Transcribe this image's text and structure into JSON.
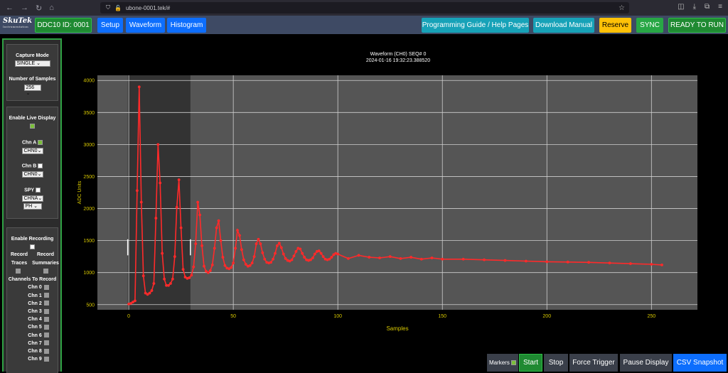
{
  "browser": {
    "url": "ubone-0001.tek/#"
  },
  "logo": {
    "name": "SkuTek",
    "tagline": "Instrumentation"
  },
  "header": {
    "device_label": "DDC10 ID: 0001",
    "nav": [
      "Setup",
      "Waveform",
      "Histogram"
    ],
    "programming_guide": "Programming Guide / Help Pages",
    "download_manual": "Download Manual",
    "reserve": "Reserve",
    "sync": "SYNC",
    "status": "READY TO RUN"
  },
  "sidebar": {
    "capture_mode_label": "Capture Mode",
    "capture_mode_value": "SINGLE",
    "num_samples_label": "Number of Samples",
    "num_samples_value": "256",
    "live_display_label": "Enable Live Display",
    "chn_a_label": "Chn A",
    "chn_a_value": "CHN0",
    "chn_b_label": "Chn B",
    "chn_b_value": "CHN0",
    "spy_label": "SPY",
    "spy_value1": "CHNA",
    "spy_value2": "PH",
    "recording_label": "Enable Recording",
    "record_traces_label": "Record Traces",
    "record_summaries_label": "Record Summaries",
    "channels_to_record_label": "Channels To Record",
    "channels": [
      "Chn 0",
      "Chn 1",
      "Chn 2",
      "Chn 3",
      "Chn 4",
      "Chn 5",
      "Chn 6",
      "Chn 7",
      "Chn 8",
      "Chn 9"
    ]
  },
  "chart_title": {
    "line1": "Waveform (CH0) SEQ# 0",
    "line2": "2024-01-16 19:32:23.388520"
  },
  "chart_data": {
    "type": "line",
    "title": "Waveform (CH0) SEQ# 0",
    "subtitle": "2024-01-16 19:32:23.388520",
    "xlabel": "Samples",
    "ylabel": "ADC Units",
    "xlim": [
      -15,
      272
    ],
    "ylim": [
      420,
      4080
    ],
    "xticks": [
      0,
      50,
      100,
      150,
      200,
      250
    ],
    "yticks": [
      500,
      1000,
      1500,
      2000,
      2500,
      3000,
      3500,
      4000
    ],
    "grid": true,
    "highlight_region": [
      -0.5,
      29.5
    ],
    "marker_positions": [
      -0.5,
      29.5
    ],
    "colors": {
      "line": "#ff2a2a",
      "plot_bg": "#555555",
      "highlight_bg": "#333333",
      "axis_text": "#d8c800"
    },
    "series": [
      {
        "values": [
          [
            0,
            510
          ],
          [
            1,
            520
          ],
          [
            2,
            540
          ],
          [
            3,
            560
          ],
          [
            4,
            2280
          ],
          [
            5,
            3900
          ],
          [
            6,
            2100
          ],
          [
            7,
            950
          ],
          [
            8,
            680
          ],
          [
            9,
            660
          ],
          [
            10,
            680
          ],
          [
            11,
            720
          ],
          [
            12,
            830
          ],
          [
            13,
            1850
          ],
          [
            14,
            3000
          ],
          [
            15,
            2400
          ],
          [
            16,
            1300
          ],
          [
            17,
            900
          ],
          [
            18,
            800
          ],
          [
            19,
            800
          ],
          [
            20,
            830
          ],
          [
            21,
            900
          ],
          [
            22,
            1250
          ],
          [
            23,
            2020
          ],
          [
            24,
            2450
          ],
          [
            25,
            1700
          ],
          [
            26,
            1050
          ],
          [
            27,
            930
          ],
          [
            28,
            910
          ],
          [
            29,
            920
          ],
          [
            30,
            960
          ],
          [
            31,
            1090
          ],
          [
            32,
            1450
          ],
          [
            33,
            2100
          ],
          [
            34,
            1900
          ],
          [
            35,
            1420
          ],
          [
            36,
            1100
          ],
          [
            37,
            1020
          ],
          [
            38,
            1000
          ],
          [
            39,
            1030
          ],
          [
            40,
            1120
          ],
          [
            41,
            1380
          ],
          [
            42,
            1700
          ],
          [
            43,
            1810
          ],
          [
            44,
            1500
          ],
          [
            45,
            1240
          ],
          [
            46,
            1110
          ],
          [
            47,
            1070
          ],
          [
            48,
            1060
          ],
          [
            49,
            1080
          ],
          [
            50,
            1150
          ],
          [
            51,
            1380
          ],
          [
            52,
            1660
          ],
          [
            53,
            1580
          ],
          [
            54,
            1360
          ],
          [
            55,
            1200
          ],
          [
            56,
            1130
          ],
          [
            57,
            1100
          ],
          [
            58,
            1110
          ],
          [
            59,
            1150
          ],
          [
            60,
            1250
          ],
          [
            61,
            1450
          ],
          [
            62,
            1520
          ],
          [
            63,
            1450
          ],
          [
            64,
            1310
          ],
          [
            65,
            1210
          ],
          [
            66,
            1160
          ],
          [
            67,
            1150
          ],
          [
            68,
            1160
          ],
          [
            69,
            1210
          ],
          [
            70,
            1300
          ],
          [
            71,
            1420
          ],
          [
            72,
            1460
          ],
          [
            73,
            1390
          ],
          [
            74,
            1290
          ],
          [
            75,
            1220
          ],
          [
            76,
            1190
          ],
          [
            77,
            1180
          ],
          [
            78,
            1200
          ],
          [
            79,
            1260
          ],
          [
            80,
            1330
          ],
          [
            81,
            1380
          ],
          [
            82,
            1370
          ],
          [
            83,
            1300
          ],
          [
            84,
            1240
          ],
          [
            85,
            1200
          ],
          [
            86,
            1190
          ],
          [
            87,
            1200
          ],
          [
            88,
            1230
          ],
          [
            89,
            1290
          ],
          [
            90,
            1330
          ],
          [
            91,
            1340
          ],
          [
            92,
            1300
          ],
          [
            93,
            1250
          ],
          [
            94,
            1210
          ],
          [
            95,
            1200
          ],
          [
            96,
            1210
          ],
          [
            97,
            1240
          ],
          [
            98,
            1280
          ],
          [
            99,
            1300
          ],
          [
            100,
            1290
          ],
          [
            105,
            1220
          ],
          [
            110,
            1270
          ],
          [
            115,
            1240
          ],
          [
            120,
            1230
          ],
          [
            125,
            1250
          ],
          [
            130,
            1220
          ],
          [
            135,
            1240
          ],
          [
            140,
            1210
          ],
          [
            145,
            1230
          ],
          [
            150,
            1210
          ],
          [
            160,
            1210
          ],
          [
            170,
            1200
          ],
          [
            180,
            1190
          ],
          [
            190,
            1180
          ],
          [
            200,
            1170
          ],
          [
            210,
            1165
          ],
          [
            220,
            1160
          ],
          [
            230,
            1150
          ],
          [
            240,
            1140
          ],
          [
            250,
            1130
          ],
          [
            255,
            1120
          ]
        ]
      }
    ]
  },
  "bottom": {
    "markers_label": "Markers",
    "start": "Start",
    "stop": "Stop",
    "force_trigger": "Force Trigger",
    "pause_display": "Pause Display",
    "csv_snapshot": "CSV Snapshot"
  }
}
